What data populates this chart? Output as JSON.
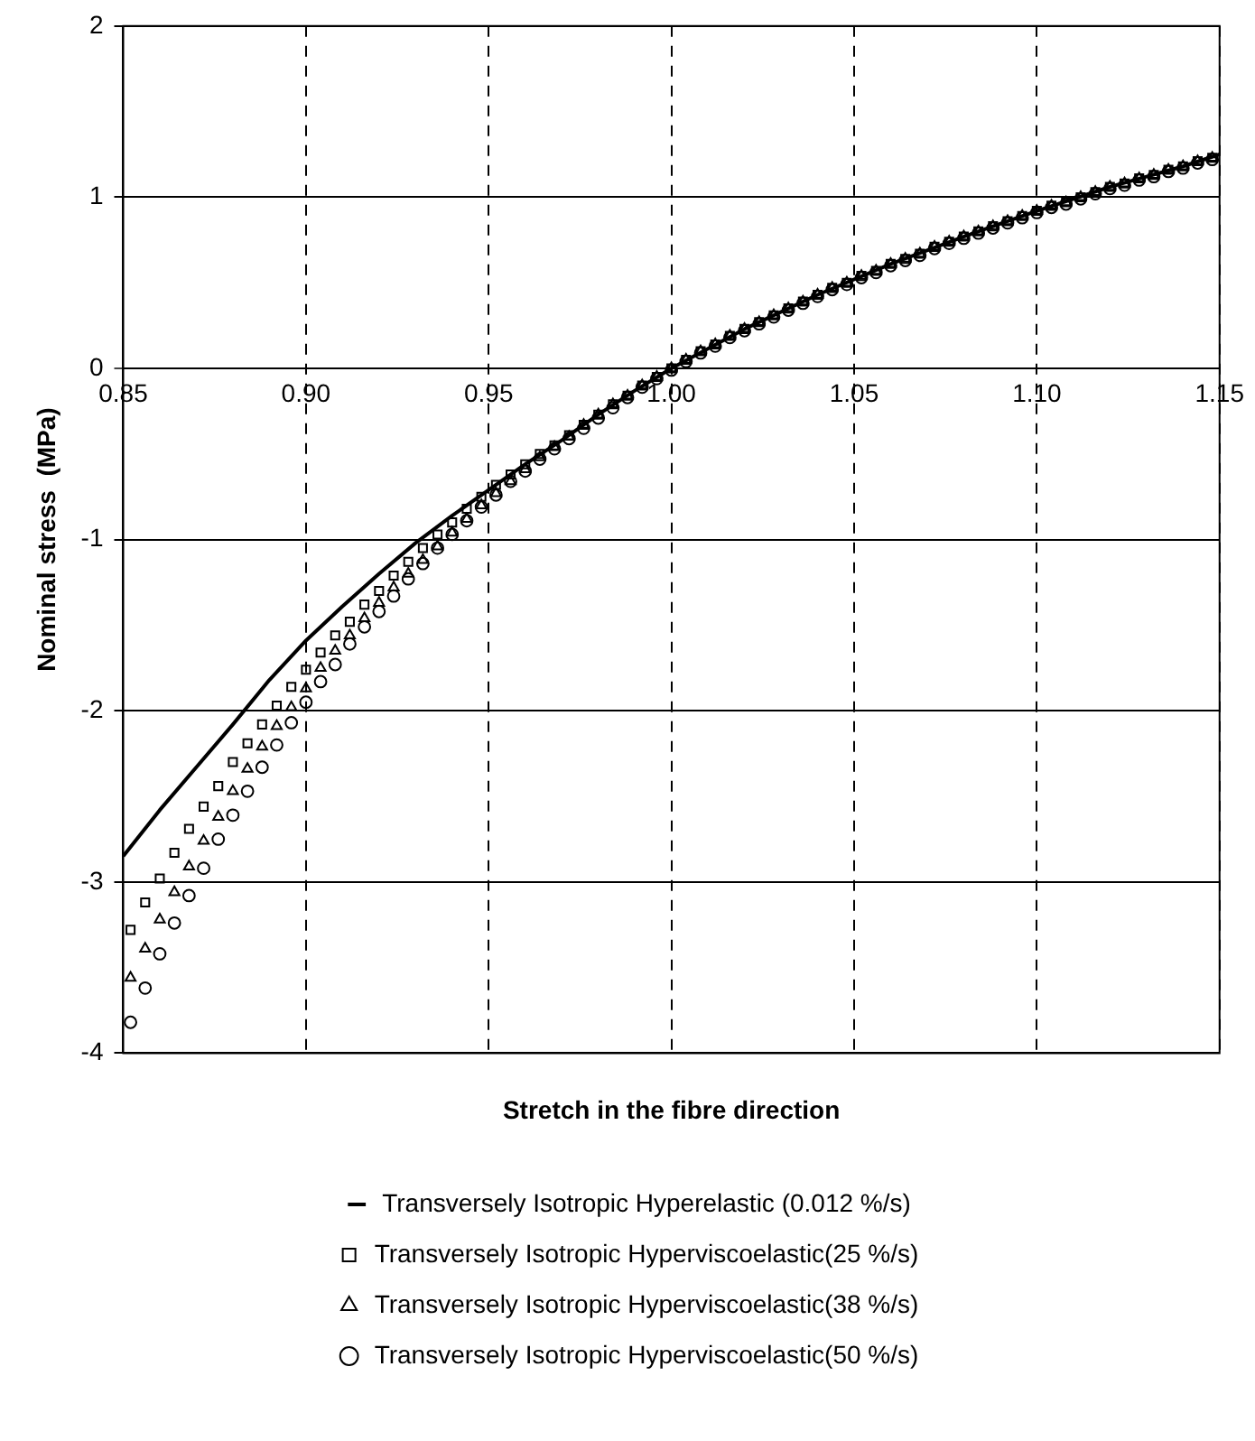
{
  "chart_data": {
    "type": "scatter",
    "xlabel": "Stretch in the fibre direction",
    "ylabel": "Nominal stress  (MPa)",
    "xlim": [
      0.85,
      1.15
    ],
    "xticks": [
      0.85,
      {
        "value": 0.9,
        "label": "0.90"
      },
      0.95,
      {
        "value": 1.0,
        "label": "1.00"
      },
      1.05,
      {
        "value": 1.1,
        "label": "1.10"
      },
      1.15
    ],
    "ylim": [
      -4,
      2
    ],
    "yticks": [
      -4,
      -3,
      -2,
      -1,
      0,
      1,
      2
    ],
    "grid": true,
    "legend": "bottom",
    "series": [
      {
        "name": "Transversely Isotropic Hyperelastic (0.012 %/s)",
        "type": "line",
        "color": "#000000",
        "marker": "none",
        "line_style": "solid",
        "x": [
          0.85,
          0.86,
          0.87,
          0.88,
          0.89,
          0.9,
          0.91,
          0.92,
          0.93,
          0.94,
          0.95,
          0.96,
          0.97,
          0.98,
          0.99,
          1.0,
          1.02,
          1.04,
          1.06,
          1.08,
          1.1,
          1.12,
          1.14,
          1.15
        ],
        "values": [
          -2.85,
          -2.58,
          -2.33,
          -2.08,
          -1.82,
          -1.59,
          -1.39,
          -1.2,
          -1.02,
          -0.86,
          -0.71,
          -0.56,
          -0.42,
          -0.27,
          -0.13,
          0,
          0.23,
          0.43,
          0.61,
          0.77,
          0.92,
          1.06,
          1.18,
          1.25
        ]
      },
      {
        "name": "Transversely Isotropic Hyperviscoelastic(25 %/s)",
        "color": "#000000",
        "marker": "square",
        "x": [
          0.852,
          0.856,
          0.86,
          0.864,
          0.868,
          0.872,
          0.876,
          0.88,
          0.884,
          0.888,
          0.892,
          0.896,
          0.9,
          0.904,
          0.908,
          0.912,
          0.916,
          0.92,
          0.924,
          0.928,
          0.932,
          0.936,
          0.94,
          0.944,
          0.948,
          0.952,
          0.956,
          0.96,
          0.964,
          0.968,
          0.972,
          0.976,
          0.98,
          0.984,
          0.988,
          0.992,
          0.996,
          1.0,
          1.004,
          1.008,
          1.012,
          1.016,
          1.02,
          1.024,
          1.028,
          1.032,
          1.036,
          1.04,
          1.044,
          1.048,
          1.052,
          1.056,
          1.06,
          1.064,
          1.068,
          1.072,
          1.076,
          1.08,
          1.084,
          1.088,
          1.092,
          1.096,
          1.1,
          1.104,
          1.108,
          1.112,
          1.116,
          1.12,
          1.124,
          1.128,
          1.132,
          1.136,
          1.14,
          1.144,
          1.148
        ],
        "values": [
          -3.28,
          -3.12,
          -2.98,
          -2.83,
          -2.69,
          -2.56,
          -2.44,
          -2.3,
          -2.19,
          -2.08,
          -1.97,
          -1.86,
          -1.76,
          -1.66,
          -1.56,
          -1.48,
          -1.38,
          -1.3,
          -1.21,
          -1.13,
          -1.05,
          -0.97,
          -0.9,
          -0.82,
          -0.75,
          -0.68,
          -0.62,
          -0.56,
          -0.5,
          -0.45,
          -0.39,
          -0.33,
          -0.27,
          -0.21,
          -0.16,
          -0.1,
          -0.05,
          0,
          0.05,
          0.1,
          0.14,
          0.19,
          0.23,
          0.27,
          0.31,
          0.35,
          0.39,
          0.43,
          0.47,
          0.5,
          0.54,
          0.57,
          0.61,
          0.64,
          0.67,
          0.71,
          0.74,
          0.77,
          0.8,
          0.83,
          0.86,
          0.89,
          0.92,
          0.95,
          0.97,
          1,
          1.03,
          1.06,
          1.08,
          1.11,
          1.13,
          1.16,
          1.18,
          1.21,
          1.23
        ]
      },
      {
        "name": "Transversely Isotropic Hyperviscoelastic(38 %/s)",
        "color": "#000000",
        "marker": "triangle",
        "x": [
          0.852,
          0.856,
          0.86,
          0.864,
          0.868,
          0.872,
          0.876,
          0.88,
          0.884,
          0.888,
          0.892,
          0.896,
          0.9,
          0.904,
          0.908,
          0.912,
          0.916,
          0.92,
          0.924,
          0.928,
          0.932,
          0.936,
          0.94,
          0.944,
          0.948,
          0.952,
          0.956,
          0.96,
          0.964,
          0.968,
          0.972,
          0.976,
          0.98,
          0.984,
          0.988,
          0.992,
          0.996,
          1.0,
          1.004,
          1.008,
          1.012,
          1.016,
          1.02,
          1.024,
          1.028,
          1.032,
          1.036,
          1.04,
          1.044,
          1.048,
          1.052,
          1.056,
          1.06,
          1.064,
          1.068,
          1.072,
          1.076,
          1.08,
          1.084,
          1.088,
          1.092,
          1.096,
          1.1,
          1.104,
          1.108,
          1.112,
          1.116,
          1.12,
          1.124,
          1.128,
          1.132,
          1.136,
          1.14,
          1.144,
          1.148
        ],
        "values": [
          -3.56,
          -3.39,
          -3.22,
          -3.06,
          -2.91,
          -2.76,
          -2.62,
          -2.47,
          -2.34,
          -2.21,
          -2.09,
          -1.98,
          -1.87,
          -1.75,
          -1.65,
          -1.56,
          -1.46,
          -1.37,
          -1.28,
          -1.2,
          -1.12,
          -1.04,
          -0.96,
          -0.88,
          -0.8,
          -0.73,
          -0.66,
          -0.59,
          -0.52,
          -0.46,
          -0.4,
          -0.33,
          -0.27,
          -0.21,
          -0.16,
          -0.1,
          -0.05,
          0,
          0.05,
          0.1,
          0.14,
          0.19,
          0.23,
          0.27,
          0.31,
          0.35,
          0.39,
          0.43,
          0.47,
          0.5,
          0.54,
          0.57,
          0.61,
          0.64,
          0.67,
          0.71,
          0.74,
          0.77,
          0.8,
          0.83,
          0.86,
          0.89,
          0.92,
          0.95,
          0.97,
          1,
          1.03,
          1.06,
          1.08,
          1.11,
          1.13,
          1.16,
          1.18,
          1.21,
          1.23
        ]
      },
      {
        "name": "Transversely Isotropic Hyperviscoelastic(50 %/s)",
        "color": "#000000",
        "marker": "circle",
        "x": [
          0.852,
          0.856,
          0.86,
          0.864,
          0.868,
          0.872,
          0.876,
          0.88,
          0.884,
          0.888,
          0.892,
          0.896,
          0.9,
          0.904,
          0.908,
          0.912,
          0.916,
          0.92,
          0.924,
          0.928,
          0.932,
          0.936,
          0.94,
          0.944,
          0.948,
          0.952,
          0.956,
          0.96,
          0.964,
          0.968,
          0.972,
          0.976,
          0.98,
          0.984,
          0.988,
          0.992,
          0.996,
          1.0,
          1.004,
          1.008,
          1.012,
          1.016,
          1.02,
          1.024,
          1.028,
          1.032,
          1.036,
          1.04,
          1.044,
          1.048,
          1.052,
          1.056,
          1.06,
          1.064,
          1.068,
          1.072,
          1.076,
          1.08,
          1.084,
          1.088,
          1.092,
          1.096,
          1.1,
          1.104,
          1.108,
          1.112,
          1.116,
          1.12,
          1.124,
          1.128,
          1.132,
          1.136,
          1.14,
          1.144,
          1.148
        ],
        "values": [
          -3.82,
          -3.62,
          -3.42,
          -3.24,
          -3.08,
          -2.92,
          -2.75,
          -2.61,
          -2.47,
          -2.33,
          -2.2,
          -2.07,
          -1.95,
          -1.83,
          -1.73,
          -1.61,
          -1.51,
          -1.42,
          -1.33,
          -1.23,
          -1.14,
          -1.05,
          -0.97,
          -0.89,
          -0.81,
          -0.74,
          -0.66,
          -0.6,
          -0.53,
          -0.47,
          -0.41,
          -0.35,
          -0.29,
          -0.23,
          -0.17,
          -0.11,
          -0.06,
          -0.01,
          0.04,
          0.09,
          0.13,
          0.18,
          0.22,
          0.26,
          0.3,
          0.34,
          0.38,
          0.42,
          0.46,
          0.49,
          0.53,
          0.56,
          0.6,
          0.63,
          0.66,
          0.7,
          0.73,
          0.76,
          0.79,
          0.82,
          0.85,
          0.88,
          0.91,
          0.94,
          0.96,
          0.99,
          1.02,
          1.05,
          1.07,
          1.1,
          1.12,
          1.15,
          1.17,
          1.2,
          1.22
        ]
      }
    ]
  }
}
